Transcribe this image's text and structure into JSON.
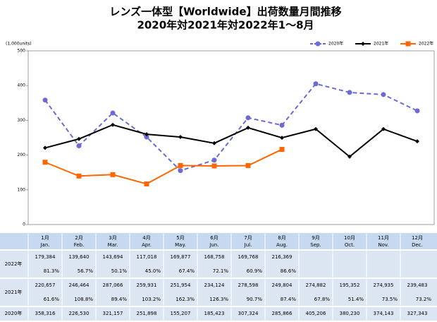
{
  "chart_data": {
    "type": "line",
    "title": "レンズ一体型【Worldwide】出荷数量月間推移",
    "subtitle": "2020年対2021年対2022年1～8月",
    "y_unit_label": "(1,000units)",
    "categories": [
      "1月",
      "2月",
      "3月",
      "4月",
      "5月",
      "6月",
      "7月",
      "8月",
      "9月",
      "10月",
      "11月",
      "12月"
    ],
    "categories_en": [
      "Jan.",
      "Feb.",
      "Mar.",
      "Apr.",
      "May.",
      "Jun.",
      "Jul.",
      "Aug.",
      "Sep.",
      "Oct.",
      "Nov.",
      "Dec."
    ],
    "ylim": [
      0,
      500
    ],
    "yticks": [
      0,
      100,
      200,
      300,
      400,
      500
    ],
    "grid": false,
    "legend": "top-right",
    "series": [
      {
        "name": "2020年",
        "color": "#6b6bd6",
        "dash": true,
        "marker": "circle",
        "values": [
          358.316,
          226.53,
          321.157,
          251.898,
          155.207,
          185.423,
          307.324,
          285.866,
          405.206,
          380.23,
          374.143,
          327.343
        ],
        "value_labels": [
          "358,316",
          "226,530",
          "321,157",
          "251,898",
          "155,207",
          "185,423",
          "307,324",
          "285,866",
          "405,206",
          "380,230",
          "374,143",
          "327,343"
        ]
      },
      {
        "name": "2021年",
        "color": "#000000",
        "dash": false,
        "marker": "diamond",
        "values": [
          220.657,
          246.464,
          287.066,
          259.931,
          251.954,
          234.124,
          278.598,
          249.804,
          274.882,
          195.352,
          274.935,
          239.483
        ],
        "value_labels": [
          "220,657",
          "246,464",
          "287,066",
          "259,931",
          "251,954",
          "234,124",
          "278,598",
          "249,804",
          "274,882",
          "195,352",
          "274,935",
          "239,483"
        ],
        "ratio_labels": [
          "61.6%",
          "108.8%",
          "89.4%",
          "103.2%",
          "162.3%",
          "126.3%",
          "90.7%",
          "87.4%",
          "67.8%",
          "51.4%",
          "73.5%",
          "73.2%"
        ]
      },
      {
        "name": "2022年",
        "color": "#ff6600",
        "dash": false,
        "marker": "square",
        "values": [
          179.384,
          139.64,
          143.694,
          117.018,
          169.877,
          168.758,
          169.768,
          216.369,
          null,
          null,
          null,
          null
        ],
        "value_labels": [
          "179,384",
          "139,640",
          "143,694",
          "117,018",
          "169,877",
          "168,758",
          "169,768",
          "216,369",
          null,
          null,
          null,
          null
        ],
        "ratio_labels": [
          "81.3%",
          "56.7%",
          "50.1%",
          "45.0%",
          "67.4%",
          "72.1%",
          "60.9%",
          "86.6%",
          null,
          null,
          null,
          null
        ]
      }
    ]
  }
}
